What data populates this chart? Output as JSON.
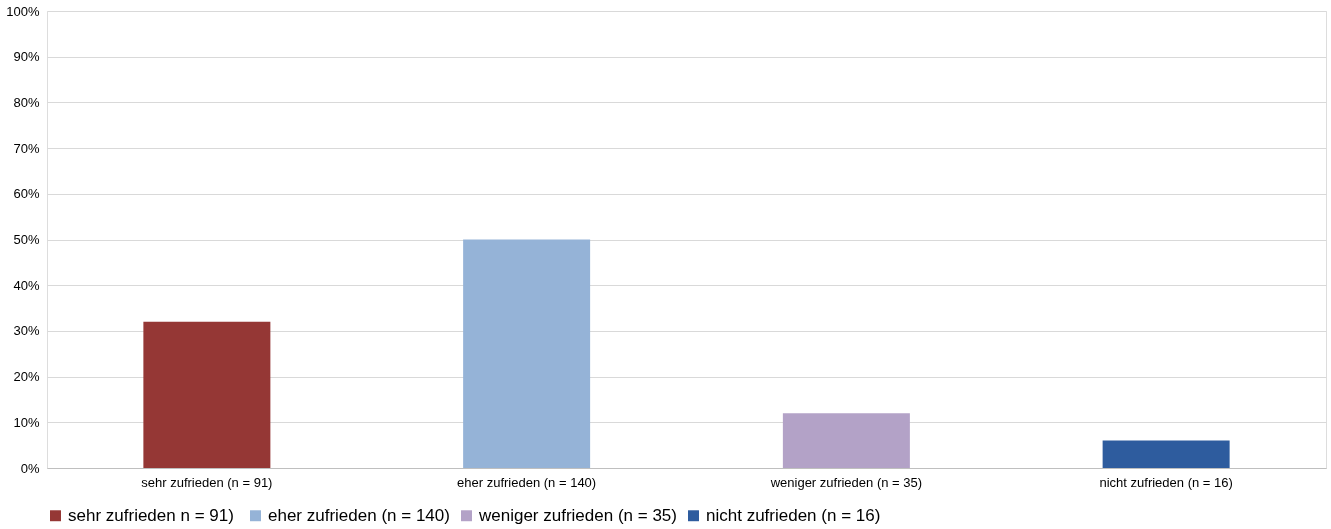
{
  "chart_data": {
    "type": "bar",
    "categories": [
      "sehr zufrieden (n = 91)",
      "eher zufrieden (n = 140)",
      "weniger zufrieden (n = 35)",
      "nicht zufrieden (n = 16)"
    ],
    "series": [
      {
        "name": "sehr zufrieden  n = 91)",
        "color": "#953735",
        "values": [
          32,
          null,
          null,
          null
        ]
      },
      {
        "name": "eher zufrieden (n = 140)",
        "color": "#95b3d7",
        "values": [
          null,
          50,
          null,
          null
        ]
      },
      {
        "name": "weniger zufrieden (n = 35)",
        "color": "#b3a2c7",
        "values": [
          null,
          null,
          12,
          null
        ]
      },
      {
        "name": "nicht zufrieden (n = 16)",
        "color": "#2e5c9e",
        "values": [
          null,
          null,
          null,
          6
        ]
      }
    ],
    "ylim": [
      0,
      100
    ],
    "yticks": [
      {
        "value": 0,
        "label": "0%"
      },
      {
        "value": 10,
        "label": "10%"
      },
      {
        "value": 20,
        "label": "20%"
      },
      {
        "value": 30,
        "label": "30%"
      },
      {
        "value": 40,
        "label": "40%"
      },
      {
        "value": 50,
        "label": "50%"
      },
      {
        "value": 60,
        "label": "60%"
      },
      {
        "value": 70,
        "label": "70%"
      },
      {
        "value": 80,
        "label": "80%"
      },
      {
        "value": 90,
        "label": "90%"
      },
      {
        "value": 100,
        "label": "100%"
      }
    ],
    "grid": "y",
    "legend": "bottom"
  }
}
